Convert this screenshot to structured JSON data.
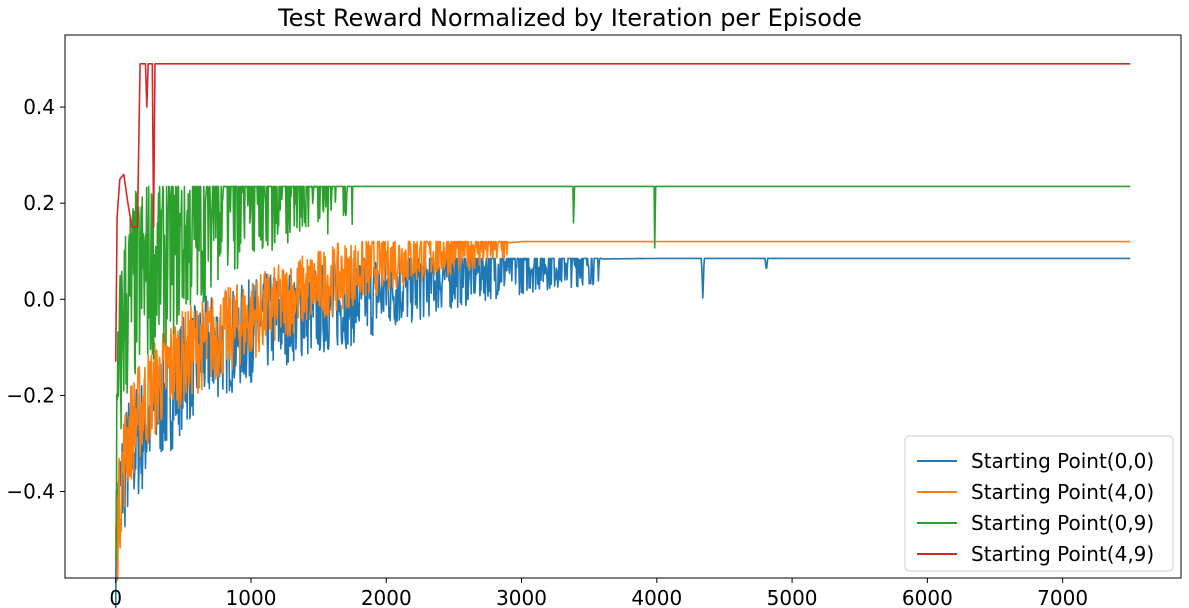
{
  "chart_data": {
    "type": "line",
    "title": "Test Reward Normalized by Iteration per Episode",
    "xlabel": "",
    "ylabel": "",
    "xlim": [
      -375,
      7875
    ],
    "ylim": [
      -0.58,
      0.55
    ],
    "x_ticks": [
      0,
      1000,
      2000,
      3000,
      4000,
      5000,
      6000,
      7000
    ],
    "y_ticks": [
      -0.4,
      -0.2,
      0.0,
      0.2,
      0.4
    ],
    "x_tick_labels": [
      "0",
      "1000",
      "2000",
      "3000",
      "4000",
      "5000",
      "6000",
      "7000"
    ],
    "y_tick_labels": [
      "−0.4",
      "−0.2",
      "0.0",
      "0.2",
      "0.4"
    ],
    "grid": false,
    "legend_position": "lower-right",
    "series": [
      {
        "name": "Starting Point(0,0)",
        "color": "#1f77b4",
        "plateau": 0.085,
        "points": [
          [
            0,
            -0.53
          ],
          [
            20,
            -0.42
          ],
          [
            50,
            -0.38
          ],
          [
            100,
            -0.32
          ],
          [
            200,
            -0.28
          ],
          [
            300,
            -0.22
          ],
          [
            400,
            -0.2
          ],
          [
            500,
            -0.15
          ],
          [
            700,
            -0.1
          ],
          [
            900,
            -0.08
          ],
          [
            1100,
            -0.05
          ],
          [
            1300,
            -0.03
          ],
          [
            1500,
            -0.02
          ],
          [
            1700,
            -0.01
          ],
          [
            1800,
            0.0
          ],
          [
            2000,
            0.02
          ],
          [
            2200,
            0.03
          ],
          [
            2400,
            0.05
          ],
          [
            2600,
            0.06
          ],
          [
            2800,
            0.07
          ],
          [
            3000,
            0.075
          ],
          [
            3200,
            0.08
          ],
          [
            3400,
            0.082
          ],
          [
            3600,
            0.084
          ],
          [
            4000,
            0.085
          ],
          [
            4330,
            0.085
          ],
          [
            4340,
            0.003
          ],
          [
            4350,
            0.085
          ],
          [
            4800,
            0.085
          ],
          [
            4810,
            0.06
          ],
          [
            4820,
            0.085
          ],
          [
            7500,
            0.085
          ]
        ]
      },
      {
        "name": "Starting Point(4,0)",
        "color": "#ff7f0e",
        "plateau": 0.12,
        "points": [
          [
            0,
            -0.52
          ],
          [
            20,
            -0.45
          ],
          [
            50,
            -0.35
          ],
          [
            100,
            -0.28
          ],
          [
            200,
            -0.22
          ],
          [
            300,
            -0.18
          ],
          [
            400,
            -0.14
          ],
          [
            600,
            -0.1
          ],
          [
            800,
            -0.07
          ],
          [
            1000,
            -0.04
          ],
          [
            1200,
            -0.01
          ],
          [
            1400,
            0.02
          ],
          [
            1600,
            0.04
          ],
          [
            1800,
            0.06
          ],
          [
            2000,
            0.08
          ],
          [
            2200,
            0.09
          ],
          [
            2400,
            0.1
          ],
          [
            2600,
            0.11
          ],
          [
            2800,
            0.115
          ],
          [
            3000,
            0.12
          ],
          [
            7500,
            0.12
          ]
        ]
      },
      {
        "name": "Starting Point(0,9)",
        "color": "#2ca02c",
        "plateau": 0.235,
        "points": [
          [
            0,
            -0.45
          ],
          [
            20,
            -0.2
          ],
          [
            50,
            -0.05
          ],
          [
            100,
            0.0
          ],
          [
            200,
            0.05
          ],
          [
            300,
            0.08
          ],
          [
            400,
            0.1
          ],
          [
            500,
            0.13
          ],
          [
            600,
            0.15
          ],
          [
            700,
            0.18
          ],
          [
            800,
            0.2
          ],
          [
            1000,
            0.22
          ],
          [
            1200,
            0.23
          ],
          [
            1500,
            0.233
          ],
          [
            1760,
            0.235
          ],
          [
            3380,
            0.235
          ],
          [
            3385,
            0.14
          ],
          [
            3390,
            0.235
          ],
          [
            3980,
            0.235
          ],
          [
            3985,
            0.075
          ],
          [
            3990,
            0.235
          ],
          [
            7500,
            0.235
          ]
        ]
      },
      {
        "name": "Starting Point(4,9)",
        "color": "#d62728",
        "plateau": 0.49,
        "points": [
          [
            0,
            -0.13
          ],
          [
            10,
            0.17
          ],
          [
            30,
            0.25
          ],
          [
            60,
            0.26
          ],
          [
            90,
            0.2
          ],
          [
            120,
            0.15
          ],
          [
            160,
            0.15
          ],
          [
            180,
            0.49
          ],
          [
            220,
            0.49
          ],
          [
            230,
            0.4
          ],
          [
            240,
            0.49
          ],
          [
            270,
            0.49
          ],
          [
            280,
            0.15
          ],
          [
            290,
            0.49
          ],
          [
            7500,
            0.49
          ]
        ]
      }
    ]
  }
}
